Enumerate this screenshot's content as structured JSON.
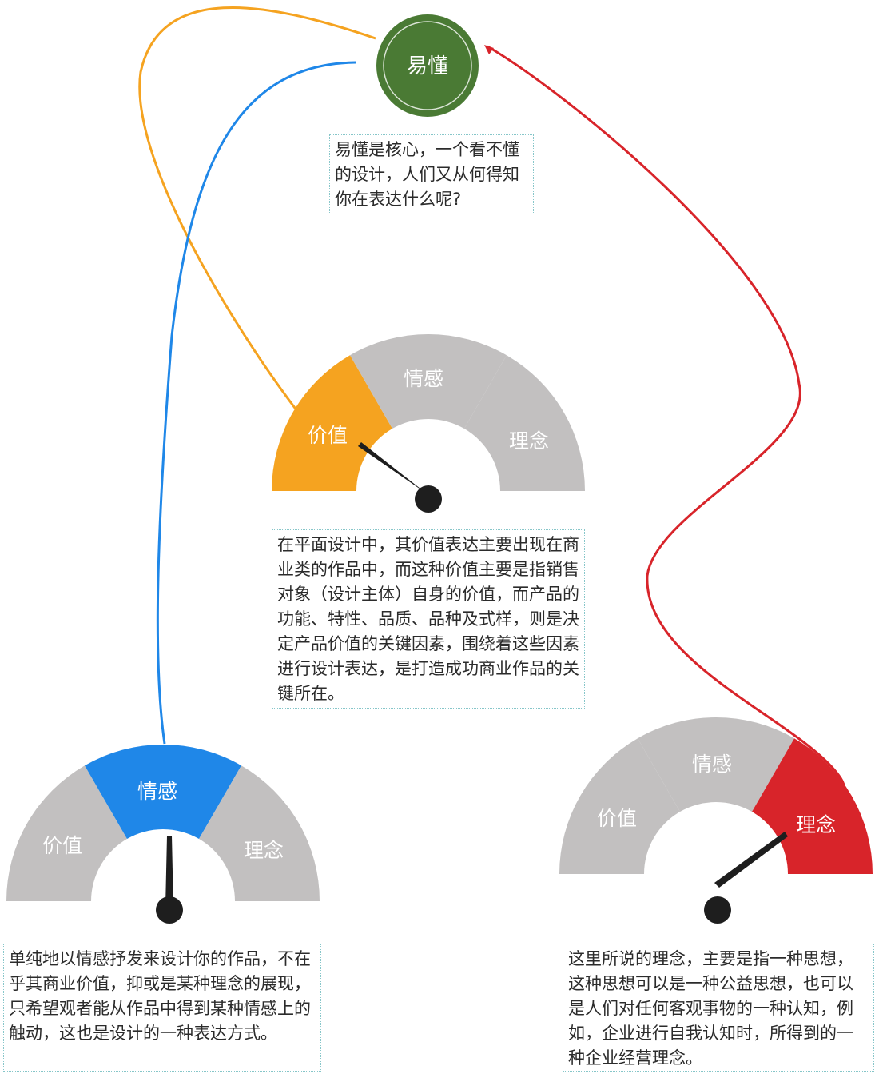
{
  "center": {
    "label": "易懂"
  },
  "colors": {
    "core": "#4a7a34",
    "value": "#f5a320",
    "emotion": "#1f87e8",
    "idea": "#d8242a",
    "inactive": "#c2c0c0",
    "needle": "#1e1e1e"
  },
  "gauges": {
    "value": {
      "labels": {
        "value": "价值",
        "emotion": "情感",
        "idea": "理念"
      }
    },
    "emotion": {
      "labels": {
        "value": "价值",
        "emotion": "情感",
        "idea": "理念"
      }
    },
    "idea": {
      "labels": {
        "value": "价值",
        "emotion": "情感",
        "idea": "理念"
      }
    }
  },
  "notes": {
    "core": "易懂是核心，一个看不懂的设计，人们又从何得知你在表达什么呢?",
    "value": "在平面设计中，其价值表达主要出现在商业类的作品中，而这种价值主要是指销售对象（设计主体）自身的价值，而产品的功能、特性、品质、品种及式样，则是决定产品价值的关键因素，围绕着这些因素进行设计表达，是打造成功商业作品的关键所在。",
    "emotion": "单纯地以情感抒发来设计你的作品，不在乎其商业价值，抑或是某种理念的展现，只希望观者能从作品中得到某种情感上的触动，这也是设计的一种表达方式。",
    "idea": "这里所说的理念，主要是指一种思想，这种思想可以是一种公益思想，也可以是人们对任何客观事物的一种认知，例如，企业进行自我认知时，所得到的一种企业经营理念。"
  }
}
